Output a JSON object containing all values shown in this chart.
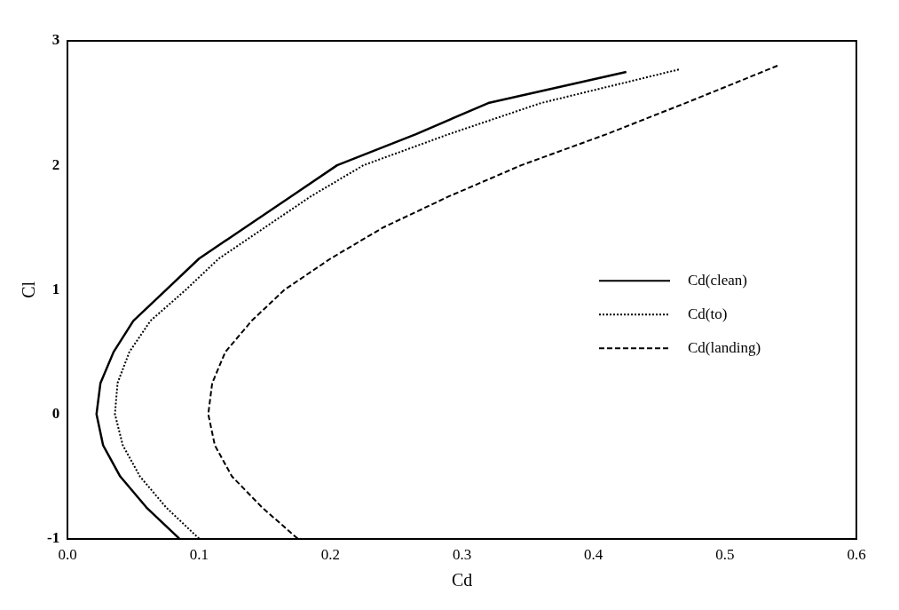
{
  "chart_data": {
    "type": "line",
    "xlabel": "Cd",
    "ylabel": "Cl",
    "xlim": [
      0,
      0.6
    ],
    "ylim": [
      -1,
      3
    ],
    "xticks": [
      {
        "value": 0,
        "label": "0.0"
      },
      0.1,
      0.2,
      0.3,
      0.4,
      0.5,
      0.6
    ],
    "yticks": [
      -1,
      0,
      1,
      2,
      3
    ],
    "grid": false,
    "legend": "right",
    "marker": "none",
    "series": [
      {
        "name": "Cd(clean)",
        "color": "#000000",
        "line_style": "solid",
        "x": [
          0.085,
          0.06,
          0.04,
          0.027,
          0.022,
          0.025,
          0.035,
          0.05,
          0.075,
          0.1,
          0.135,
          0.17,
          0.205,
          0.265,
          0.32,
          0.425
        ],
        "values": [
          -1,
          -0.75,
          -0.5,
          -0.25,
          0,
          0.25,
          0.5,
          0.75,
          1,
          1.25,
          1.5,
          1.75,
          2,
          2.25,
          2.5,
          2.75
        ]
      },
      {
        "name": "Cd(to)",
        "color": "#000000",
        "line_style": "dotted",
        "x": [
          0.1,
          0.075,
          0.055,
          0.042,
          0.036,
          0.038,
          0.047,
          0.063,
          0.09,
          0.115,
          0.15,
          0.185,
          0.225,
          0.29,
          0.36,
          0.465
        ],
        "values": [
          -1,
          -0.75,
          -0.5,
          -0.25,
          0,
          0.25,
          0.5,
          0.75,
          1,
          1.25,
          1.5,
          1.75,
          2,
          2.25,
          2.5,
          2.77
        ]
      },
      {
        "name": "Cd(landing)",
        "color": "#000000",
        "line_style": "dashed",
        "x": [
          0.175,
          0.148,
          0.125,
          0.112,
          0.107,
          0.11,
          0.12,
          0.14,
          0.165,
          0.2,
          0.24,
          0.29,
          0.345,
          0.41,
          0.47,
          0.54
        ],
        "values": [
          -1,
          -0.75,
          -0.5,
          -0.25,
          0,
          0.25,
          0.5,
          0.75,
          1,
          1.25,
          1.5,
          1.75,
          2,
          2.25,
          2.5,
          2.8
        ]
      }
    ]
  }
}
